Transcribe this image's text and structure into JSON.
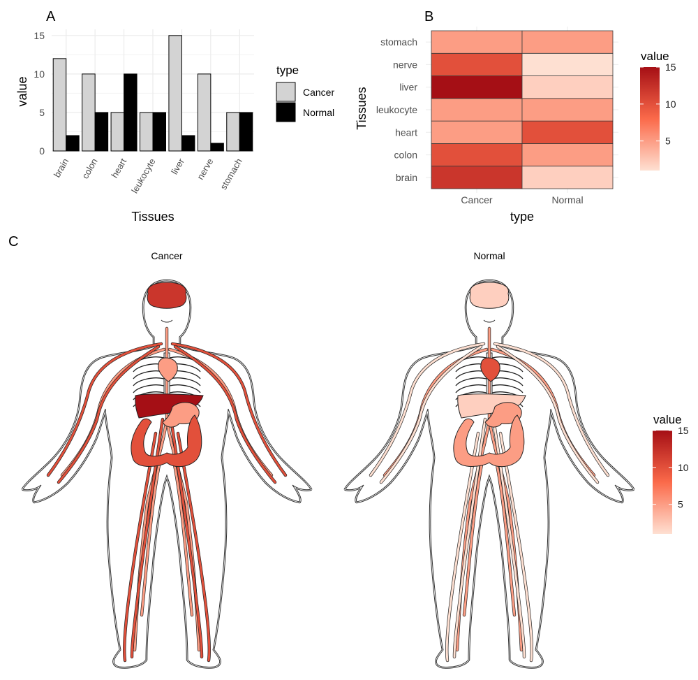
{
  "panel_labels": {
    "a": "A",
    "b": "B",
    "c": "C"
  },
  "colors": {
    "cancer_bar": "#d3d3d3",
    "normal_bar": "#000000",
    "scale_low": "#fee0d2",
    "scale_mid": "#fb6a4a",
    "scale_high": "#a50f15",
    "grid": "#ebebeb",
    "outline": "#1a1a1a"
  },
  "chart_data": [
    {
      "id": "A",
      "type": "bar",
      "categories": [
        "brain",
        "colon",
        "heart",
        "leukocyte",
        "liver",
        "nerve",
        "stomach"
      ],
      "series": [
        {
          "name": "Cancer",
          "values": [
            12,
            10,
            5,
            5,
            15,
            10,
            5
          ]
        },
        {
          "name": "Normal",
          "values": [
            2,
            5,
            10,
            5,
            2,
            1,
            5
          ]
        }
      ],
      "xlabel": "Tissues",
      "ylabel": "value",
      "ylim": [
        0,
        15.8
      ],
      "yticks": [
        0,
        5,
        10,
        15
      ],
      "legend_title": "type",
      "legend_position": "right",
      "grid": true
    },
    {
      "id": "B",
      "type": "heatmap",
      "x": [
        "Cancer",
        "Normal"
      ],
      "y": [
        "brain",
        "colon",
        "heart",
        "leukocyte",
        "liver",
        "nerve",
        "stomach"
      ],
      "values": {
        "Cancer": [
          12,
          10,
          5,
          5,
          15,
          10,
          5
        ],
        "Normal": [
          2,
          5,
          10,
          5,
          2,
          1,
          5
        ]
      },
      "xlabel": "type",
      "ylabel": "Tissues",
      "legend_title": "value",
      "legend_ticks": [
        5,
        10,
        15
      ],
      "value_range": [
        1,
        15
      ],
      "legend_position": "right"
    },
    {
      "id": "C",
      "type": "anatomogram",
      "facets": [
        "Cancer",
        "Normal"
      ],
      "tissues": [
        "brain",
        "colon",
        "heart",
        "leukocyte",
        "liver",
        "nerve",
        "stomach"
      ],
      "values": {
        "Cancer": {
          "brain": 12,
          "colon": 10,
          "heart": 5,
          "leukocyte": 5,
          "liver": 15,
          "nerve": 10,
          "stomach": 5
        },
        "Normal": {
          "brain": 2,
          "colon": 5,
          "heart": 10,
          "leukocyte": 5,
          "liver": 2,
          "nerve": 1,
          "stomach": 5
        }
      },
      "legend_title": "value",
      "legend_ticks": [
        5,
        10,
        15
      ],
      "value_range": [
        1,
        15
      ],
      "legend_position": "right"
    }
  ]
}
